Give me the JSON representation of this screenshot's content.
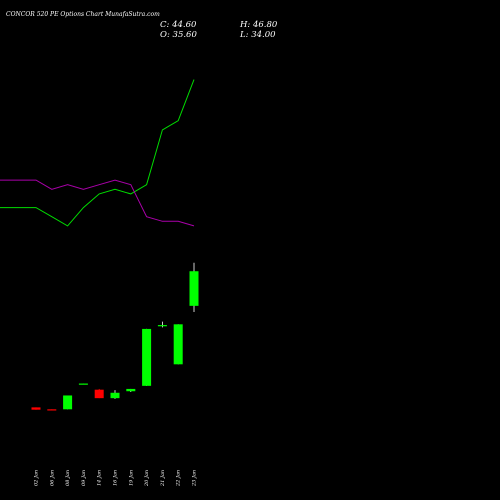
{
  "header": {
    "title": "CONCOR 520  PE Options  Chart MunafaSutra.com",
    "close": "C: 44.60",
    "high": "H: 46.80",
    "open": "O: 35.60",
    "low": "L: 34.00"
  },
  "colors": {
    "background": "#000000",
    "up": "#00ff00",
    "down": "#ff0000",
    "line_green": "#00dd00",
    "line_magenta": "#aa00aa",
    "text": "#ffffff"
  },
  "chart_data": {
    "type": "candlestick",
    "x_labels": [
      "02 Jan",
      "06 Jan",
      "08 Jan",
      "09 Jan",
      "14 Jan",
      "16 Jan",
      "19 Jan",
      "20 Jan",
      "21 Jan",
      "22 Jan",
      "23 Jan"
    ],
    "candles": [
      {
        "date": "02 Jan",
        "open": 9.2,
        "high": 9.2,
        "low": 8.6,
        "close": 8.6
      },
      {
        "date": "06 Jan",
        "open": 8.7,
        "high": 8.7,
        "low": 8.6,
        "close": 8.6
      },
      {
        "date": "08 Jan",
        "open": 8.7,
        "high": 12.3,
        "low": 8.7,
        "close": 12.3
      },
      {
        "date": "09 Jan",
        "open": 15.4,
        "high": 15.4,
        "low": 15.3,
        "close": 15.4
      },
      {
        "date": "14 Jan",
        "open": 13.8,
        "high": 14.0,
        "low": 11.6,
        "close": 11.6
      },
      {
        "date": "16 Jan",
        "open": 11.6,
        "high": 13.7,
        "low": 11.4,
        "close": 13.0
      },
      {
        "date": "19 Jan",
        "open": 13.4,
        "high": 14.0,
        "low": 13.2,
        "close": 14.0
      },
      {
        "date": "20 Jan",
        "open": 14.8,
        "high": 29.6,
        "low": 14.8,
        "close": 29.6
      },
      {
        "date": "21 Jan",
        "open": 30.4,
        "high": 31.5,
        "low": 30.0,
        "close": 30.6
      },
      {
        "date": "22 Jan",
        "open": 20.4,
        "high": 30.8,
        "low": 20.4,
        "close": 30.8
      },
      {
        "date": "23 Jan",
        "open": 35.6,
        "high": 46.8,
        "low": 34.0,
        "close": 44.6
      }
    ],
    "ma_lines": [
      {
        "color": "#00dd00",
        "values": [
          97.0,
          96.8,
          96.6,
          97.0,
          97.3,
          97.4,
          97.3,
          97.5,
          98.7,
          98.9,
          99.8
        ]
      },
      {
        "color": "#aa00aa",
        "values": [
          97.6,
          97.4,
          97.5,
          97.4,
          97.5,
          97.6,
          97.5,
          96.8,
          96.7,
          96.7,
          96.6
        ]
      }
    ],
    "grid": false,
    "legend": "none"
  }
}
